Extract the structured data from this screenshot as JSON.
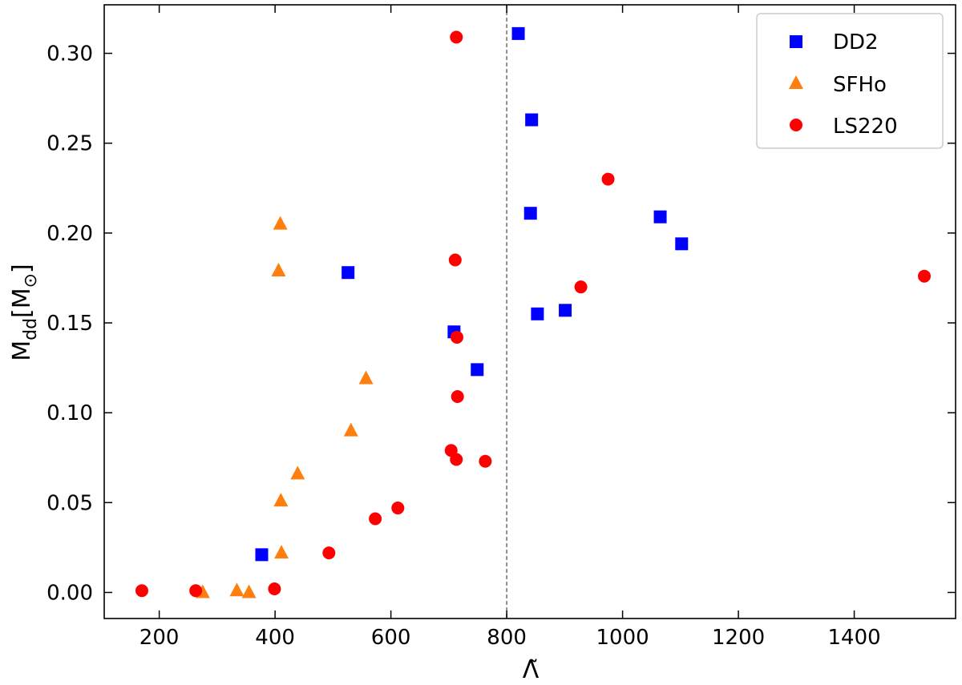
{
  "chart_data": {
    "type": "scatter",
    "xlabel": "Λ̃",
    "ylabel_main": "M",
    "ylabel_sub": "dd",
    "ylabel_unit_open": "[M",
    "ylabel_unit_sub": "⊙",
    "ylabel_unit_close": "]",
    "xlim": [
      105,
      1575
    ],
    "ylim": [
      -0.0145,
      0.327
    ],
    "xticks": [
      200,
      400,
      600,
      800,
      1000,
      1200,
      1400
    ],
    "xtick_labels": [
      "200",
      "400",
      "600",
      "800",
      "1000",
      "1200",
      "1400"
    ],
    "yticks": [
      0.0,
      0.05,
      0.1,
      0.15,
      0.2,
      0.25,
      0.3
    ],
    "ytick_labels": [
      "0.00",
      "0.05",
      "0.10",
      "0.15",
      "0.20",
      "0.25",
      "0.30"
    ],
    "grid": false,
    "vline_x": 800,
    "legend_position": "top-right",
    "series": [
      {
        "name": "DD2",
        "marker": "square",
        "color": "#0000ff",
        "points": [
          [
            820,
            0.311
          ],
          [
            843,
            0.263
          ],
          [
            841,
            0.211
          ],
          [
            526,
            0.178
          ],
          [
            709,
            0.145
          ],
          [
            749,
            0.124
          ],
          [
            853,
            0.155
          ],
          [
            901,
            0.157
          ],
          [
            1065,
            0.209
          ],
          [
            1102,
            0.194
          ],
          [
            377,
            0.021
          ]
        ]
      },
      {
        "name": "SFHo",
        "marker": "triangle",
        "color": "#ff7f0e",
        "points": [
          [
            409,
            0.205
          ],
          [
            406,
            0.179
          ],
          [
            557,
            0.119
          ],
          [
            531,
            0.09
          ],
          [
            439,
            0.066
          ],
          [
            410,
            0.051
          ],
          [
            411,
            0.022
          ],
          [
            275,
            0.0
          ],
          [
            334,
            0.001
          ],
          [
            355,
            0.0
          ]
        ]
      },
      {
        "name": "LS220",
        "marker": "circle",
        "color": "#ff0000",
        "points": [
          [
            713,
            0.309
          ],
          [
            711,
            0.185
          ],
          [
            714,
            0.142
          ],
          [
            715,
            0.109
          ],
          [
            704,
            0.079
          ],
          [
            713,
            0.074
          ],
          [
            763,
            0.073
          ],
          [
            975,
            0.23
          ],
          [
            928,
            0.17
          ],
          [
            1521,
            0.176
          ],
          [
            612,
            0.047
          ],
          [
            573,
            0.041
          ],
          [
            493,
            0.022
          ],
          [
            399,
            0.002
          ],
          [
            170,
            0.001
          ],
          [
            263,
            0.001
          ]
        ]
      }
    ]
  },
  "colors": {
    "vline": "#888888",
    "axis": "#000000"
  }
}
